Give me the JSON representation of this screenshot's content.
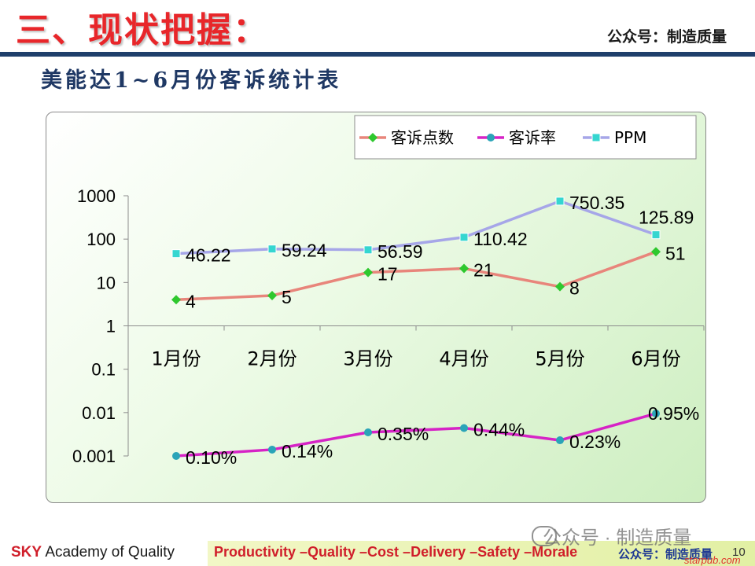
{
  "header": {
    "title": "三、现状把握：",
    "account": "公众号：制造质量"
  },
  "subtitle": "美能达1~6月份客诉统计表",
  "chart_data": {
    "type": "line",
    "yscale": "log",
    "ylim": [
      0.001,
      1000
    ],
    "yticks": [
      {
        "v": 1000,
        "label": "1000"
      },
      {
        "v": 100,
        "label": "100"
      },
      {
        "v": 10,
        "label": "10"
      },
      {
        "v": 1,
        "label": "1"
      },
      {
        "v": 0.1,
        "label": "0.1"
      },
      {
        "v": 0.01,
        "label": "0.01"
      },
      {
        "v": 0.001,
        "label": "0.001"
      }
    ],
    "categories": [
      "1月份",
      "2月份",
      "3月份",
      "4月份",
      "5月份",
      "6月份"
    ],
    "legend": "top-right",
    "series": [
      {
        "name": "客诉点数",
        "color": "#e8857b",
        "marker_color": "#2ec82e",
        "marker": "diamond",
        "values": [
          4,
          5,
          17,
          21,
          8,
          51
        ],
        "labels": [
          "4",
          "5",
          "17",
          "21",
          "8",
          "51"
        ]
      },
      {
        "name": "客诉率",
        "color": "#d623c6",
        "marker_color": "#2aa4b8",
        "marker": "circle",
        "values": [
          0.001,
          0.0014,
          0.0035,
          0.0044,
          0.0023,
          0.0095
        ],
        "labels": [
          "0.10%",
          "0.14%",
          "0.35%",
          "0.44%",
          "0.23%",
          "0.95%"
        ]
      },
      {
        "name": "PPM",
        "color": "#a6a6e8",
        "marker_color": "#35d6d0",
        "marker": "square",
        "values": [
          46.22,
          59.24,
          56.59,
          110.42,
          750.35,
          125.89
        ],
        "labels": [
          "46.22",
          "59.24",
          "56.59",
          "110.42",
          "750.35",
          "125.89"
        ]
      }
    ]
  },
  "footer": {
    "sky": "SKY",
    "academy": "Academy of Quality",
    "slogan": "Productivity –Quality –Cost –Delivery –Safety –Morale",
    "account": "公众号：制造质量",
    "page": "10",
    "watermark": "公众号 · 制造质量",
    "site": "starpub.com"
  }
}
